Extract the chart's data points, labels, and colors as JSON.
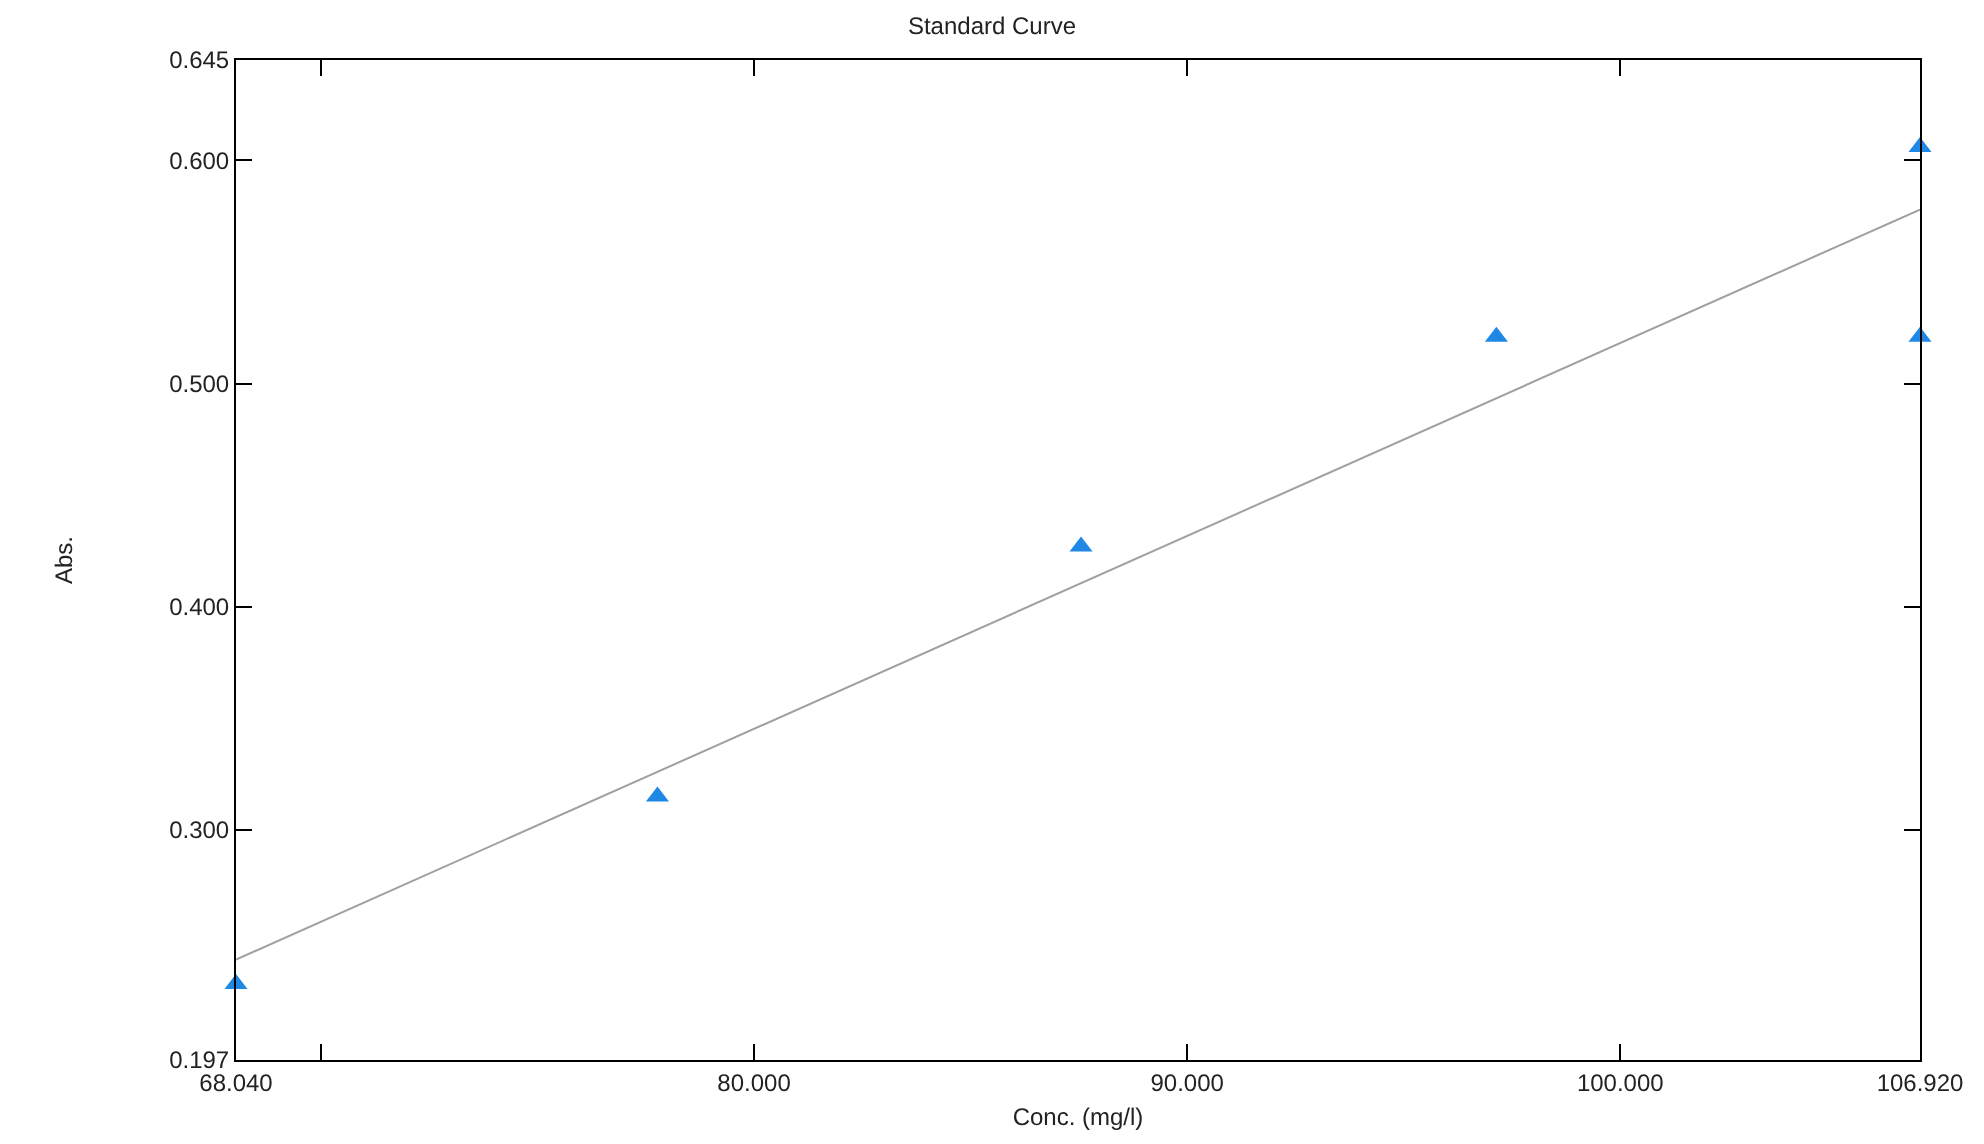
{
  "chart_data": {
    "type": "scatter",
    "title": "Standard Curve",
    "xlabel": "Conc. (mg/l)",
    "ylabel": "Abs.",
    "xlim": [
      68.04,
      106.92
    ],
    "xticks": [
      {
        "value": 68.04,
        "label": "68.040"
      },
      {
        "value": 70,
        "label": null
      },
      {
        "value": 80,
        "label": "80.000"
      },
      {
        "value": 90,
        "label": "90.000"
      },
      {
        "value": 100,
        "label": "100.000"
      },
      {
        "value": 106.92,
        "label": "106.920"
      }
    ],
    "ylim": [
      0.197,
      0.645
    ],
    "yticks": [
      {
        "value": 0.197,
        "label": "0.197"
      },
      {
        "value": 0.3,
        "label": "0.300"
      },
      {
        "value": 0.4,
        "label": "0.400"
      },
      {
        "value": 0.5,
        "label": "0.500"
      },
      {
        "value": 0.6,
        "label": "0.600"
      },
      {
        "value": 0.645,
        "label": "0.645"
      }
    ],
    "grid": false,
    "legend": false,
    "series": [
      {
        "marker": "triangle",
        "color": "#1f88e5",
        "x": [
          68.04,
          77.77,
          87.55,
          97.14,
          106.92,
          106.92
        ],
        "values": [
          0.231,
          0.315,
          0.427,
          0.521,
          0.606,
          0.521
        ]
      },
      {
        "type": "line",
        "color": "#a0a0a0",
        "x": [
          68.04,
          106.92
        ],
        "values": [
          0.242,
          0.578
        ]
      }
    ]
  }
}
